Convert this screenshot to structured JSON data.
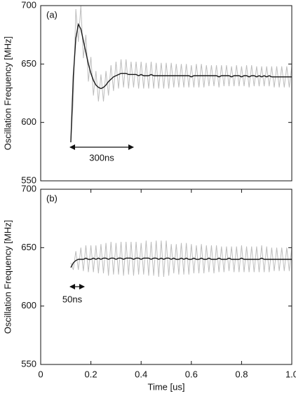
{
  "chart_data": [
    {
      "type": "line",
      "label": "(a)",
      "ylabel": "Oscillation Frequency [MHz]",
      "annotation": "300ns",
      "xlim": [
        0,
        1.0
      ],
      "ylim": [
        550,
        700
      ],
      "yticks": [
        550,
        600,
        650,
        700
      ],
      "x": [
        0.12,
        0.13,
        0.14,
        0.15,
        0.16,
        0.17,
        0.18,
        0.19,
        0.2,
        0.21,
        0.22,
        0.23,
        0.24,
        0.25,
        0.26,
        0.27,
        0.28,
        0.29,
        0.3,
        0.31,
        0.32,
        0.33,
        0.34,
        0.35,
        0.36,
        0.37,
        0.38,
        0.39,
        0.4,
        0.41,
        0.42,
        0.43,
        0.44,
        0.45,
        0.46,
        0.47,
        0.48,
        0.49,
        0.5,
        0.51,
        0.52,
        0.53,
        0.54,
        0.55,
        0.56,
        0.57,
        0.58,
        0.59,
        0.6,
        0.61,
        0.62,
        0.63,
        0.64,
        0.65,
        0.66,
        0.67,
        0.68,
        0.69,
        0.7,
        0.71,
        0.72,
        0.73,
        0.74,
        0.75,
        0.76,
        0.77,
        0.78,
        0.79,
        0.8,
        0.81,
        0.82,
        0.83,
        0.84,
        0.85,
        0.86,
        0.87,
        0.88,
        0.89,
        0.9,
        0.91,
        0.92,
        0.93,
        0.94,
        0.95,
        0.96,
        0.97,
        0.98,
        0.99,
        1.0
      ],
      "series": [
        {
          "color": "#bdbdbd",
          "values": [
            583,
            620,
            697,
            669,
            700,
            655,
            675,
            635,
            656,
            623,
            644,
            618,
            641,
            618,
            644,
            623,
            649,
            627,
            652,
            629,
            654,
            630,
            654,
            629,
            652,
            630,
            652,
            629,
            652,
            629,
            651,
            629,
            652,
            629,
            651,
            629,
            651,
            629,
            651,
            629,
            651,
            630,
            650,
            630,
            650,
            630,
            650,
            630,
            649,
            630,
            650,
            630,
            650,
            630,
            649,
            631,
            649,
            631,
            649,
            630,
            649,
            631,
            649,
            631,
            648,
            631,
            649,
            631,
            648,
            631,
            649,
            630,
            649,
            631,
            648,
            631,
            648,
            631,
            648,
            631,
            648,
            630,
            648,
            630,
            648,
            630,
            648,
            630,
            648
          ]
        },
        {
          "color": "#1a1a1a",
          "values": [
            583,
            640,
            672,
            684,
            680,
            670,
            660,
            650,
            642,
            636,
            632,
            630,
            629,
            630,
            632,
            635,
            637,
            639,
            640,
            641,
            642,
            642,
            642,
            641,
            641,
            641,
            641,
            640,
            641,
            640,
            640,
            640,
            641,
            640,
            640,
            640,
            640,
            640,
            640,
            640,
            640,
            640,
            640,
            640,
            640,
            640,
            640,
            640,
            639,
            640,
            640,
            640,
            640,
            640,
            640,
            640,
            640,
            640,
            640,
            639,
            640,
            640,
            640,
            640,
            639,
            640,
            640,
            640,
            639,
            640,
            640,
            639,
            640,
            640,
            639,
            640,
            639,
            640,
            639,
            640,
            639,
            639,
            639,
            639,
            639,
            639,
            639,
            639,
            639
          ]
        }
      ]
    },
    {
      "type": "line",
      "label": "(b)",
      "ylabel": "Oscillation Frequency [MHz]",
      "xlabel": "Time [us]",
      "annotation": "50ns",
      "xlim": [
        0,
        1.0
      ],
      "ylim": [
        550,
        700
      ],
      "yticks": [
        550,
        600,
        650,
        700
      ],
      "xticks": [
        0,
        0.2,
        0.4,
        0.6,
        0.8,
        {
          "value": 1.0,
          "label": "1.0"
        }
      ],
      "x": [
        0.12,
        0.13,
        0.14,
        0.15,
        0.16,
        0.17,
        0.18,
        0.19,
        0.2,
        0.21,
        0.22,
        0.23,
        0.24,
        0.25,
        0.26,
        0.27,
        0.28,
        0.29,
        0.3,
        0.31,
        0.32,
        0.33,
        0.34,
        0.35,
        0.36,
        0.37,
        0.38,
        0.39,
        0.4,
        0.41,
        0.42,
        0.43,
        0.44,
        0.45,
        0.46,
        0.47,
        0.48,
        0.49,
        0.5,
        0.51,
        0.52,
        0.53,
        0.54,
        0.55,
        0.56,
        0.57,
        0.58,
        0.59,
        0.6,
        0.61,
        0.62,
        0.63,
        0.64,
        0.65,
        0.66,
        0.67,
        0.68,
        0.69,
        0.7,
        0.71,
        0.72,
        0.73,
        0.74,
        0.75,
        0.76,
        0.77,
        0.78,
        0.79,
        0.8,
        0.81,
        0.82,
        0.83,
        0.84,
        0.85,
        0.86,
        0.87,
        0.88,
        0.89,
        0.9,
        0.91,
        0.92,
        0.93,
        0.94,
        0.95,
        0.96,
        0.97,
        0.98,
        0.99,
        1.0
      ],
      "series": [
        {
          "color": "#bdbdbd",
          "values": [
            637,
            631,
            647,
            631,
            650,
            630,
            652,
            629,
            652,
            629,
            652,
            628,
            653,
            628,
            654,
            626,
            655,
            627,
            654,
            627,
            655,
            626,
            655,
            627,
            655,
            626,
            655,
            627,
            654,
            627,
            656,
            626,
            655,
            626,
            656,
            625,
            656,
            625,
            656,
            626,
            653,
            628,
            653,
            627,
            654,
            627,
            654,
            627,
            653,
            628,
            652,
            628,
            653,
            628,
            652,
            629,
            652,
            628,
            652,
            629,
            651,
            629,
            651,
            630,
            651,
            629,
            651,
            629,
            652,
            629,
            651,
            629,
            651,
            629,
            651,
            629,
            652,
            629,
            651,
            629,
            650,
            630,
            650,
            630,
            650,
            630,
            650,
            630,
            650
          ]
        },
        {
          "color": "#1a1a1a",
          "values": [
            633,
            637,
            639,
            640,
            640,
            640,
            641,
            640,
            640,
            641,
            640,
            641,
            640,
            641,
            641,
            640,
            641,
            641,
            640,
            641,
            641,
            640,
            641,
            641,
            641,
            640,
            641,
            641,
            640,
            641,
            641,
            641,
            640,
            641,
            641,
            640,
            641,
            640,
            641,
            641,
            640,
            641,
            640,
            640,
            641,
            640,
            641,
            640,
            640,
            641,
            640,
            640,
            641,
            640,
            640,
            641,
            640,
            640,
            640,
            641,
            640,
            640,
            640,
            641,
            640,
            640,
            640,
            640,
            641,
            640,
            640,
            640,
            640,
            640,
            640,
            640,
            641,
            640,
            640,
            640,
            640,
            640,
            640,
            640,
            640,
            640,
            640,
            640,
            640
          ]
        }
      ]
    }
  ]
}
